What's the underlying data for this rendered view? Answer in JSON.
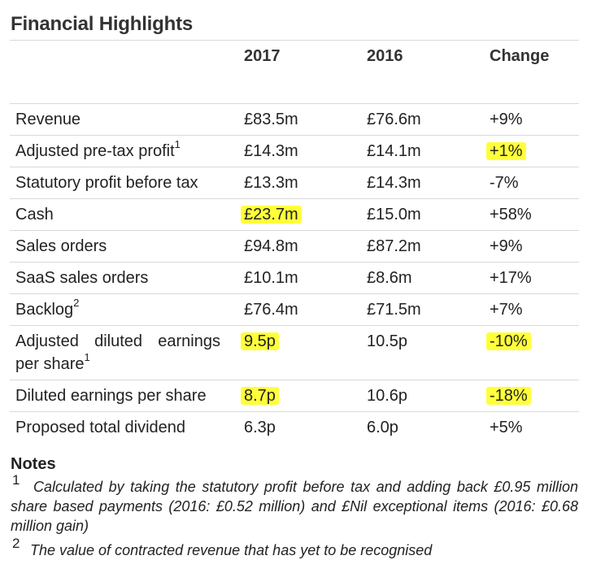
{
  "title": "Financial Highlights",
  "headers": {
    "year_2017": "2017",
    "year_2016": "2016",
    "change": "Change"
  },
  "rows": [
    {
      "label": "Revenue",
      "sup": "",
      "v2017": "£83.5m",
      "v2016": "£76.6m",
      "change": "+9%"
    },
    {
      "label": "Adjusted pre-tax profit",
      "sup": "1",
      "v2017": "£14.3m",
      "v2016": "£14.1m",
      "change": "+1%"
    },
    {
      "label": "Statutory profit before tax",
      "sup": "",
      "v2017": "£13.3m",
      "v2016": "£14.3m",
      "change": "-7%"
    },
    {
      "label": "Cash",
      "sup": "",
      "v2017": "£23.7m",
      "v2016": "£15.0m",
      "change": "+58%"
    },
    {
      "label": "Sales orders",
      "sup": "",
      "v2017": "£94.8m",
      "v2016": "£87.2m",
      "change": "+9%"
    },
    {
      "label": "SaaS sales orders",
      "sup": "",
      "v2017": "£10.1m",
      "v2016": "£8.6m",
      "change": "+17%"
    },
    {
      "label": "Backlog",
      "sup": "2",
      "v2017": "£76.4m",
      "v2016": "£71.5m",
      "change": "+7%"
    },
    {
      "label": "Adjusted diluted earnings per share",
      "sup": "1",
      "v2017": "9.5p",
      "v2016": "10.5p",
      "change": "-10%"
    },
    {
      "label": "Diluted earnings per share",
      "sup": "",
      "v2017": "8.7p",
      "v2016": "10.6p",
      "change": "-18%"
    },
    {
      "label": "Proposed total dividend",
      "sup": "",
      "v2017": "6.3p",
      "v2016": "6.0p",
      "change": "+5%"
    }
  ],
  "highlight_color": "#ffff3a",
  "notes": {
    "title": "Notes",
    "items": [
      {
        "num": "1",
        "text": "Calculated by taking the statutory profit before tax and adding back £0.95 million share based payments (2016: £0.52 million) and £Nil exceptional items (2016: £0.68 million gain)"
      },
      {
        "num": "2",
        "text": "The value of contracted revenue that has yet to be recognised"
      }
    ]
  }
}
